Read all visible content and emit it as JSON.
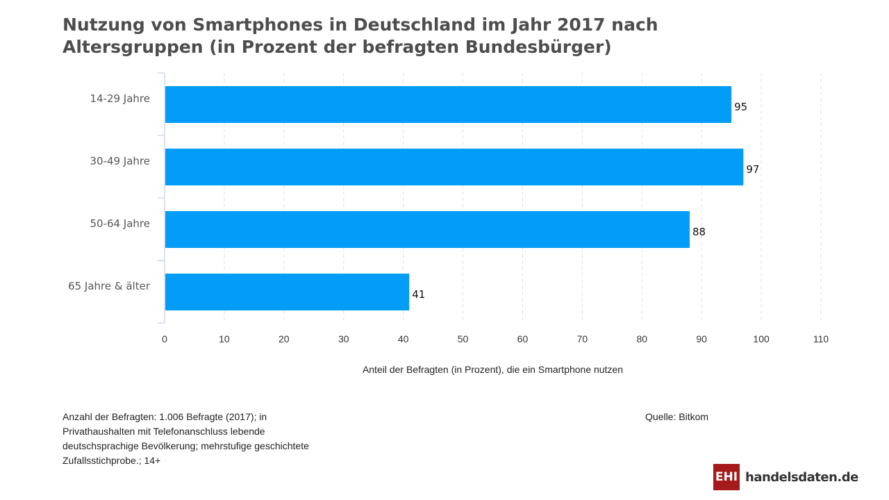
{
  "chart_data": {
    "type": "bar",
    "orientation": "horizontal",
    "title": "Nutzung von Smartphones in Deutschland im Jahr 2017 nach Altersgruppen (in Prozent der befragten Bundesbürger)",
    "categories": [
      "14-29 Jahre",
      "30-49 Jahre",
      "50-64 Jahre",
      "65 Jahre & älter"
    ],
    "values": [
      95,
      97,
      88,
      41
    ],
    "xlabel": "Anteil der Befragten (in Prozent), die ein Smartphone nutzen",
    "ylabel": "",
    "xlim": [
      0,
      110
    ],
    "xticks": [
      0,
      10,
      20,
      30,
      40,
      50,
      60,
      70,
      80,
      90,
      100,
      110
    ],
    "grid": true,
    "bar_color": "#039cf6"
  },
  "footnote": "Anzahl der Befragten: 1.006 Befragte (2017); in Privathaushalten mit Telefonanschluss lebende deutschsprachige Bevölkerung; mehrstufige geschichtete Zufallsstichprobe.; 14+",
  "source": "Quelle: Bitkom",
  "logo": {
    "mark": "EHI",
    "text": "handelsdaten.de",
    "color": "#a51b1b"
  }
}
